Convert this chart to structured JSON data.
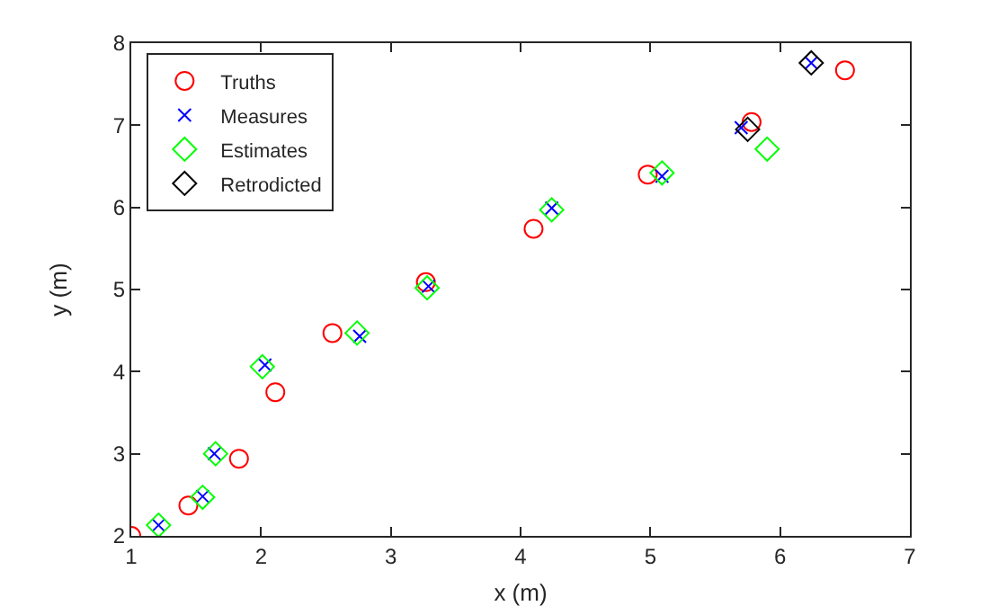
{
  "chart_data": {
    "type": "scatter",
    "xlabel": "x (m)",
    "ylabel": "y (m)",
    "xlim": [
      1,
      7
    ],
    "xticks": [
      1,
      2,
      3,
      4,
      5,
      6,
      7
    ],
    "ylim": [
      2,
      8
    ],
    "yticks": [
      2,
      3,
      4,
      5,
      6,
      7,
      8
    ],
    "grid": false,
    "legend": "top left",
    "series": [
      {
        "name": "Truths",
        "color": "#ff0000",
        "marker": "circle",
        "x": [
          1,
          1.44,
          1.83,
          2.11,
          2.55,
          3.27,
          4.1,
          4.98,
          5.78,
          6.5
        ],
        "values": [
          2,
          2.37,
          2.94,
          3.75,
          4.47,
          5.09,
          5.74,
          6.4,
          7.04,
          7.67
        ]
      },
      {
        "name": "Measures",
        "color": "#0000ff",
        "marker": "cross",
        "x": [
          1.21,
          1.55,
          1.64,
          2.03,
          2.76,
          3.29,
          4.24,
          5.09,
          5.7,
          6.24
        ],
        "values": [
          2.13,
          2.48,
          3.0,
          4.08,
          4.43,
          5.04,
          5.99,
          6.38,
          6.97,
          7.76
        ]
      },
      {
        "name": "Estimates",
        "color": "#00ff00",
        "marker": "diamond",
        "x": [
          1.21,
          1.55,
          1.65,
          2.01,
          2.74,
          3.28,
          4.24,
          5.09,
          5.9
        ],
        "values": [
          2.13,
          2.47,
          3.0,
          4.06,
          4.47,
          5.02,
          5.97,
          6.42,
          6.71
        ]
      },
      {
        "name": "Retrodicted",
        "color": "#000000",
        "marker": "diamond",
        "x": [
          5.75,
          6.24
        ],
        "values": [
          6.95,
          7.76
        ]
      }
    ]
  }
}
